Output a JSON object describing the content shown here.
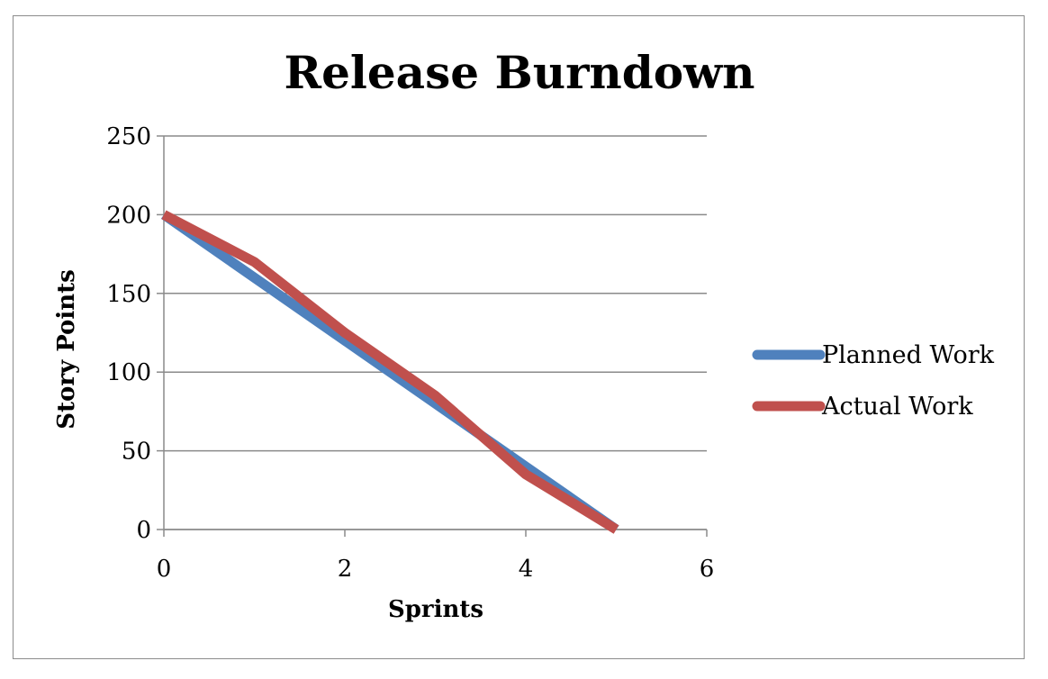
{
  "chart_data": {
    "type": "line",
    "title": "Release Burndown",
    "xlabel": "Sprints",
    "ylabel": "Story Points",
    "xlim": [
      0,
      6
    ],
    "ylim": [
      0,
      250
    ],
    "x_ticks": [
      "0",
      "2",
      "4",
      "6"
    ],
    "y_ticks": [
      "0",
      "50",
      "100",
      "150",
      "200",
      "250"
    ],
    "grid": "horizontal major gridlines",
    "legend_position": "right",
    "series": [
      {
        "name": "Planned Work",
        "color": "#4f81bd",
        "x": [
          0,
          1,
          2,
          3,
          4,
          5
        ],
        "y": [
          200,
          160,
          120,
          80,
          40,
          0
        ]
      },
      {
        "name": "Actual Work",
        "color": "#c0504d",
        "x": [
          0,
          1,
          2,
          3,
          4,
          5
        ],
        "y": [
          200,
          170,
          125,
          85,
          35,
          0
        ]
      }
    ]
  }
}
